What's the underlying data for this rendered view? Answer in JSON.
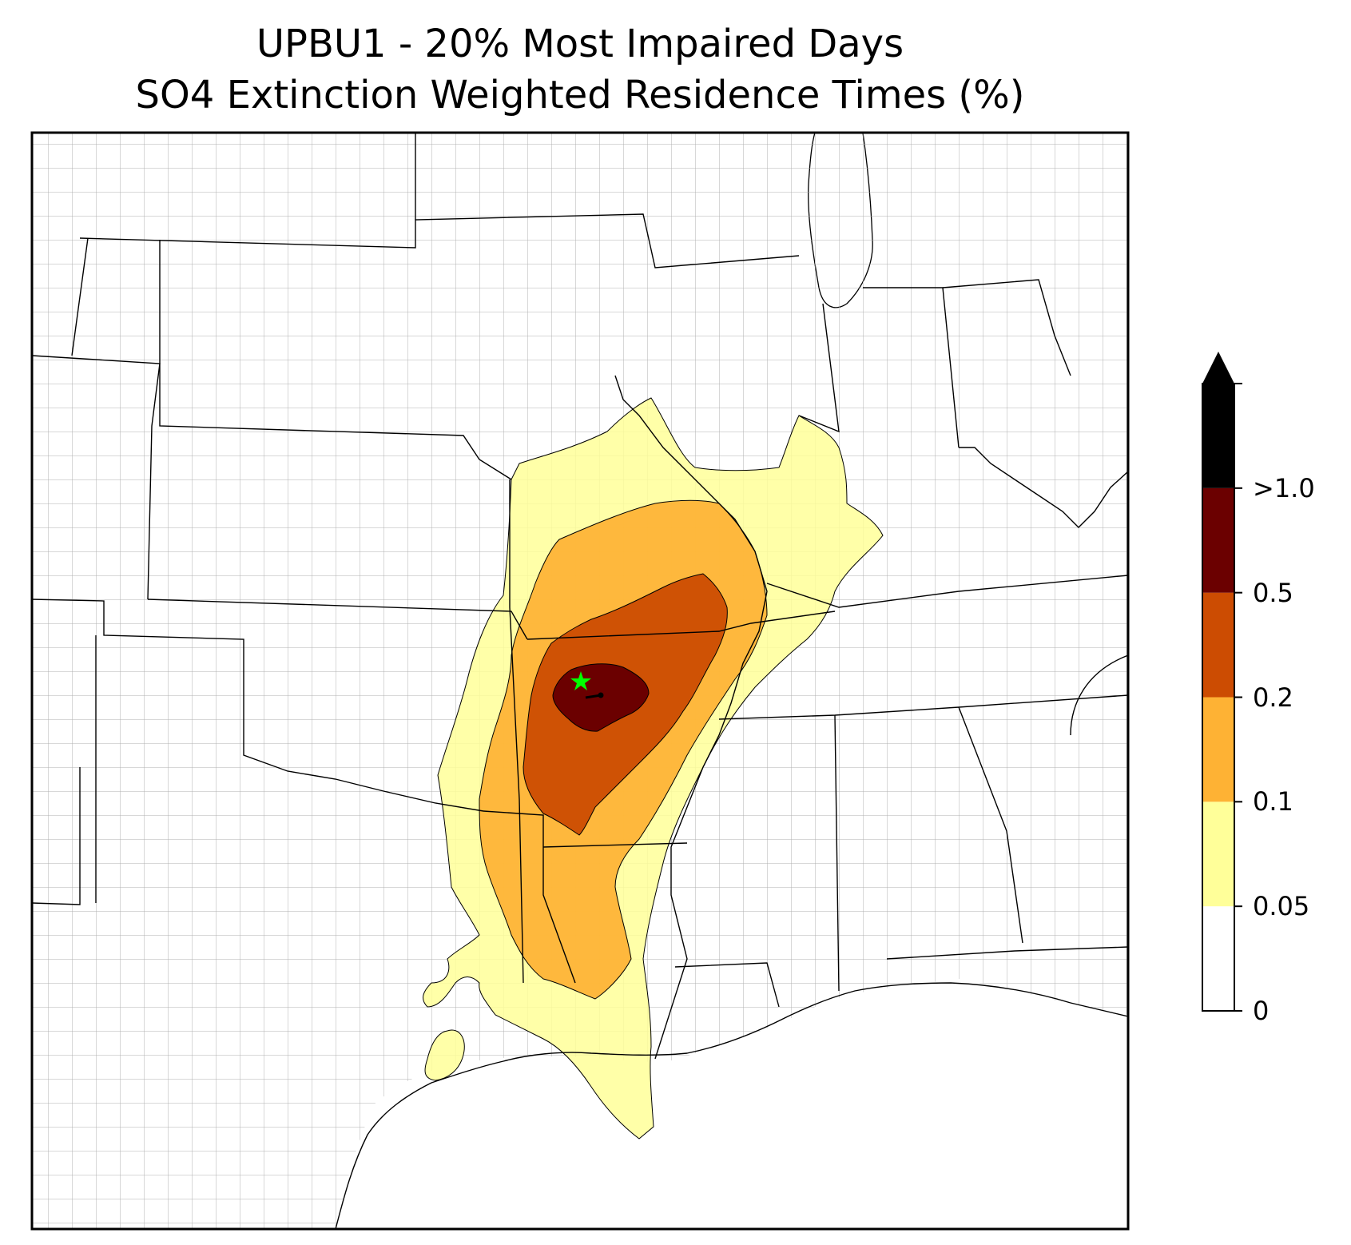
{
  "title": {
    "line1": "UPBU1 - 20% Most Impaired Days",
    "line2": "SO4 Extinction Weighted Residence Times (%)"
  },
  "colorbar": {
    "levels": [
      {
        "label": "0",
        "color": "#ffffff"
      },
      {
        "label": "0.05",
        "color": "#ffff99"
      },
      {
        "label": "0.1",
        "color": "#feb234"
      },
      {
        "label": "0.2",
        "color": "#cc4c02"
      },
      {
        "label": "0.5",
        "color": "#6b0000"
      },
      {
        "label": ">1.0",
        "color": "#000000"
      }
    ],
    "extend": "max",
    "extend_color": "#000000"
  },
  "map": {
    "region": "central and eastern United States",
    "receptor_marker": "green star",
    "receptor_color": "#00ff00",
    "county_line_color": "#a0a0a0",
    "state_line_color": "#000000"
  }
}
